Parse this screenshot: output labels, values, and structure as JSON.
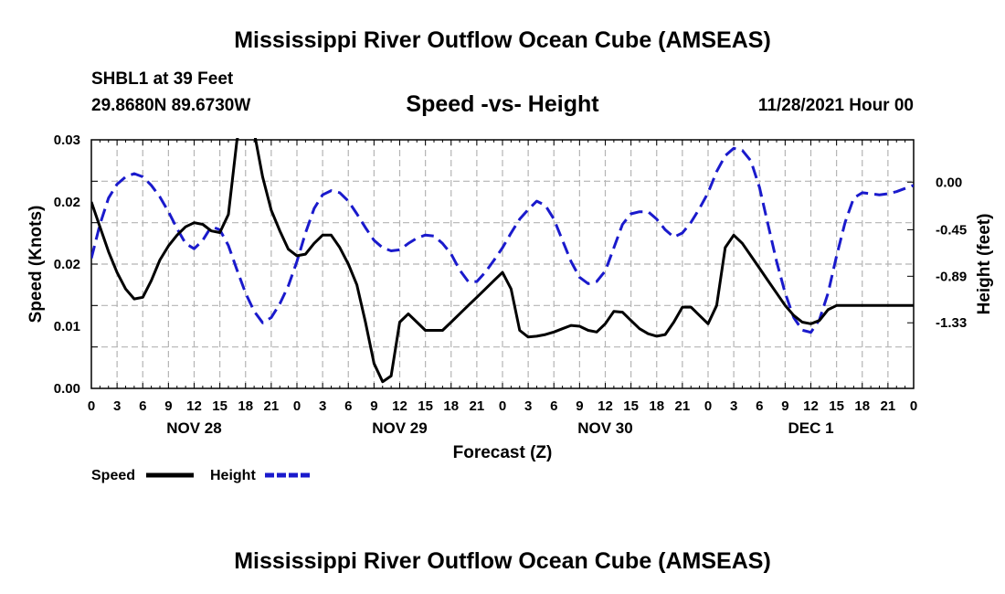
{
  "page": {
    "title_top": "Mississippi River Outflow Ocean Cube (AMSEAS)",
    "title_bottom": "Mississippi River Outflow Ocean Cube (AMSEAS)",
    "station": "SHBL1 at 39 Feet",
    "coords": "29.8680N  89.6730W",
    "date": "11/28/2021 Hour 00"
  },
  "colors": {
    "speed": "#000000",
    "height": "#1a1acc",
    "grid": "#b4b4b4"
  },
  "chart_data": {
    "type": "line",
    "title": "Speed -vs- Height",
    "xlabel": "Forecast (Z)",
    "ylabel": "Speed (Knots)",
    "y2label": "Height (feet)",
    "x_range": [
      0,
      96
    ],
    "x_tick_labels": [
      "0",
      "3",
      "6",
      "9",
      "12",
      "15",
      "18",
      "21",
      "0",
      "3",
      "6",
      "9",
      "12",
      "15",
      "18",
      "21",
      "0",
      "3",
      "6",
      "9",
      "12",
      "15",
      "18",
      "21",
      "0",
      "3",
      "6",
      "9",
      "12",
      "15",
      "18",
      "21",
      "0"
    ],
    "day_labels": [
      {
        "label": "NOV 28",
        "hour": 12
      },
      {
        "label": "NOV 29",
        "hour": 36
      },
      {
        "label": "NOV 30",
        "hour": 60
      },
      {
        "label": "DEC 1",
        "hour": 84
      }
    ],
    "ylim": [
      0,
      0.03
    ],
    "y_tick_values": [
      0,
      0.005,
      0.01,
      0.015,
      0.02,
      0.025,
      0.03
    ],
    "y_tick_labels": [
      "0.00",
      "0.01",
      "0.02",
      "0.02",
      "0.03"
    ],
    "y_tick_label_values": [
      0,
      0.01,
      0.015,
      0.02,
      0.03
    ],
    "y2lim": [
      -1.95,
      0.4
    ],
    "y2_ticks": [
      0.0,
      -0.45,
      -0.89,
      -1.33
    ],
    "y2_tick_labels": [
      "0.00",
      "-0.45",
      "-0.89",
      "-1.33"
    ],
    "legend": [
      {
        "name": "Speed",
        "style": "solid"
      },
      {
        "name": "Height",
        "style": "dashed"
      }
    ],
    "series": [
      {
        "name": "Speed",
        "axis": "left",
        "points": [
          [
            0,
            0.0225
          ],
          [
            1,
            0.0195
          ],
          [
            2,
            0.0165
          ],
          [
            3,
            0.014
          ],
          [
            4,
            0.012
          ],
          [
            5,
            0.0108
          ],
          [
            6,
            0.011
          ],
          [
            7,
            0.013
          ],
          [
            8,
            0.0155
          ],
          [
            9,
            0.0172
          ],
          [
            10,
            0.0185
          ],
          [
            11,
            0.0195
          ],
          [
            12,
            0.02
          ],
          [
            13,
            0.0198
          ],
          [
            14,
            0.019
          ],
          [
            15,
            0.0188
          ],
          [
            16,
            0.021
          ],
          [
            17,
            0.03
          ],
          [
            18,
            0.0335
          ],
          [
            19,
            0.031
          ],
          [
            20,
            0.0255
          ],
          [
            21,
            0.0215
          ],
          [
            22,
            0.019
          ],
          [
            23,
            0.0168
          ],
          [
            24,
            0.016
          ],
          [
            25,
            0.0162
          ],
          [
            26,
            0.0175
          ],
          [
            27,
            0.0185
          ],
          [
            28,
            0.0185
          ],
          [
            29,
            0.017
          ],
          [
            30,
            0.015
          ],
          [
            31,
            0.0125
          ],
          [
            32,
            0.008
          ],
          [
            33,
            0.003
          ],
          [
            34,
            0.0008
          ],
          [
            35,
            0.0015
          ],
          [
            36,
            0.008
          ],
          [
            37,
            0.009
          ],
          [
            38,
            0.008
          ],
          [
            39,
            0.007
          ],
          [
            40,
            0.007
          ],
          [
            41,
            0.007
          ],
          [
            42,
            0.008
          ],
          [
            43,
            0.009
          ],
          [
            44,
            0.01
          ],
          [
            45,
            0.011
          ],
          [
            46,
            0.012
          ],
          [
            47,
            0.013
          ],
          [
            48,
            0.014
          ],
          [
            49,
            0.012
          ],
          [
            50,
            0.007
          ],
          [
            51,
            0.0062
          ],
          [
            52,
            0.0063
          ],
          [
            53,
            0.0065
          ],
          [
            54,
            0.0068
          ],
          [
            55,
            0.0072
          ],
          [
            56,
            0.0076
          ],
          [
            57,
            0.0075
          ],
          [
            58,
            0.007
          ],
          [
            59,
            0.0068
          ],
          [
            60,
            0.0078
          ],
          [
            61,
            0.0093
          ],
          [
            62,
            0.0092
          ],
          [
            63,
            0.0082
          ],
          [
            64,
            0.0072
          ],
          [
            65,
            0.0066
          ],
          [
            66,
            0.0063
          ],
          [
            67,
            0.0065
          ],
          [
            68,
            0.008
          ],
          [
            69,
            0.0098
          ],
          [
            70,
            0.0098
          ],
          [
            71,
            0.0088
          ],
          [
            72,
            0.0078
          ],
          [
            73,
            0.01
          ],
          [
            74,
            0.017
          ],
          [
            75,
            0.0185
          ],
          [
            76,
            0.0175
          ],
          [
            77,
            0.016
          ],
          [
            78,
            0.0145
          ],
          [
            79,
            0.013
          ],
          [
            80,
            0.0115
          ],
          [
            81,
            0.01
          ],
          [
            82,
            0.0088
          ],
          [
            83,
            0.008
          ],
          [
            84,
            0.0078
          ],
          [
            85,
            0.0082
          ],
          [
            86,
            0.0095
          ],
          [
            87,
            0.01
          ],
          [
            88,
            0.01
          ],
          [
            89,
            0.01
          ],
          [
            90,
            0.01
          ],
          [
            91,
            0.01
          ],
          [
            92,
            0.01
          ],
          [
            93,
            0.01
          ],
          [
            94,
            0.01
          ],
          [
            95,
            0.01
          ],
          [
            96,
            0.01
          ]
        ]
      },
      {
        "name": "Height",
        "axis": "right",
        "points": [
          [
            0,
            -0.72
          ],
          [
            1,
            -0.4
          ],
          [
            2,
            -0.15
          ],
          [
            3,
            -0.02
          ],
          [
            4,
            0.05
          ],
          [
            5,
            0.08
          ],
          [
            6,
            0.05
          ],
          [
            7,
            -0.03
          ],
          [
            8,
            -0.14
          ],
          [
            9,
            -0.28
          ],
          [
            10,
            -0.44
          ],
          [
            11,
            -0.58
          ],
          [
            12,
            -0.63
          ],
          [
            13,
            -0.55
          ],
          [
            14,
            -0.42
          ],
          [
            15,
            -0.45
          ],
          [
            16,
            -0.6
          ],
          [
            17,
            -0.83
          ],
          [
            18,
            -1.05
          ],
          [
            19,
            -1.22
          ],
          [
            20,
            -1.33
          ],
          [
            21,
            -1.28
          ],
          [
            22,
            -1.15
          ],
          [
            23,
            -0.98
          ],
          [
            24,
            -0.75
          ],
          [
            25,
            -0.48
          ],
          [
            26,
            -0.25
          ],
          [
            27,
            -0.12
          ],
          [
            28,
            -0.08
          ],
          [
            29,
            -0.1
          ],
          [
            30,
            -0.18
          ],
          [
            31,
            -0.3
          ],
          [
            32,
            -0.43
          ],
          [
            33,
            -0.55
          ],
          [
            34,
            -0.62
          ],
          [
            35,
            -0.65
          ],
          [
            36,
            -0.64
          ],
          [
            37,
            -0.58
          ],
          [
            38,
            -0.53
          ],
          [
            39,
            -0.5
          ],
          [
            40,
            -0.51
          ],
          [
            41,
            -0.58
          ],
          [
            42,
            -0.68
          ],
          [
            43,
            -0.83
          ],
          [
            44,
            -0.94
          ],
          [
            45,
            -0.94
          ],
          [
            46,
            -0.85
          ],
          [
            47,
            -0.74
          ],
          [
            48,
            -0.62
          ],
          [
            49,
            -0.48
          ],
          [
            50,
            -0.35
          ],
          [
            51,
            -0.26
          ],
          [
            52,
            -0.18
          ],
          [
            53,
            -0.22
          ],
          [
            54,
            -0.35
          ],
          [
            55,
            -0.55
          ],
          [
            56,
            -0.75
          ],
          [
            57,
            -0.9
          ],
          [
            58,
            -0.96
          ],
          [
            59,
            -0.94
          ],
          [
            60,
            -0.84
          ],
          [
            61,
            -0.62
          ],
          [
            62,
            -0.4
          ],
          [
            63,
            -0.3
          ],
          [
            64,
            -0.28
          ],
          [
            65,
            -0.28
          ],
          [
            66,
            -0.35
          ],
          [
            67,
            -0.45
          ],
          [
            68,
            -0.52
          ],
          [
            69,
            -0.48
          ],
          [
            70,
            -0.38
          ],
          [
            71,
            -0.25
          ],
          [
            72,
            -0.1
          ],
          [
            73,
            0.1
          ],
          [
            74,
            0.25
          ],
          [
            75,
            0.32
          ],
          [
            76,
            0.3
          ],
          [
            77,
            0.2
          ],
          [
            78,
            -0.05
          ],
          [
            79,
            -0.4
          ],
          [
            80,
            -0.75
          ],
          [
            81,
            -1.05
          ],
          [
            82,
            -1.28
          ],
          [
            83,
            -1.4
          ],
          [
            84,
            -1.42
          ],
          [
            85,
            -1.3
          ],
          [
            86,
            -1.05
          ],
          [
            87,
            -0.7
          ],
          [
            88,
            -0.38
          ],
          [
            89,
            -0.15
          ],
          [
            90,
            -0.1
          ],
          [
            91,
            -0.11
          ],
          [
            92,
            -0.12
          ],
          [
            93,
            -0.11
          ],
          [
            94,
            -0.09
          ],
          [
            95,
            -0.06
          ],
          [
            96,
            -0.03
          ]
        ]
      }
    ]
  }
}
